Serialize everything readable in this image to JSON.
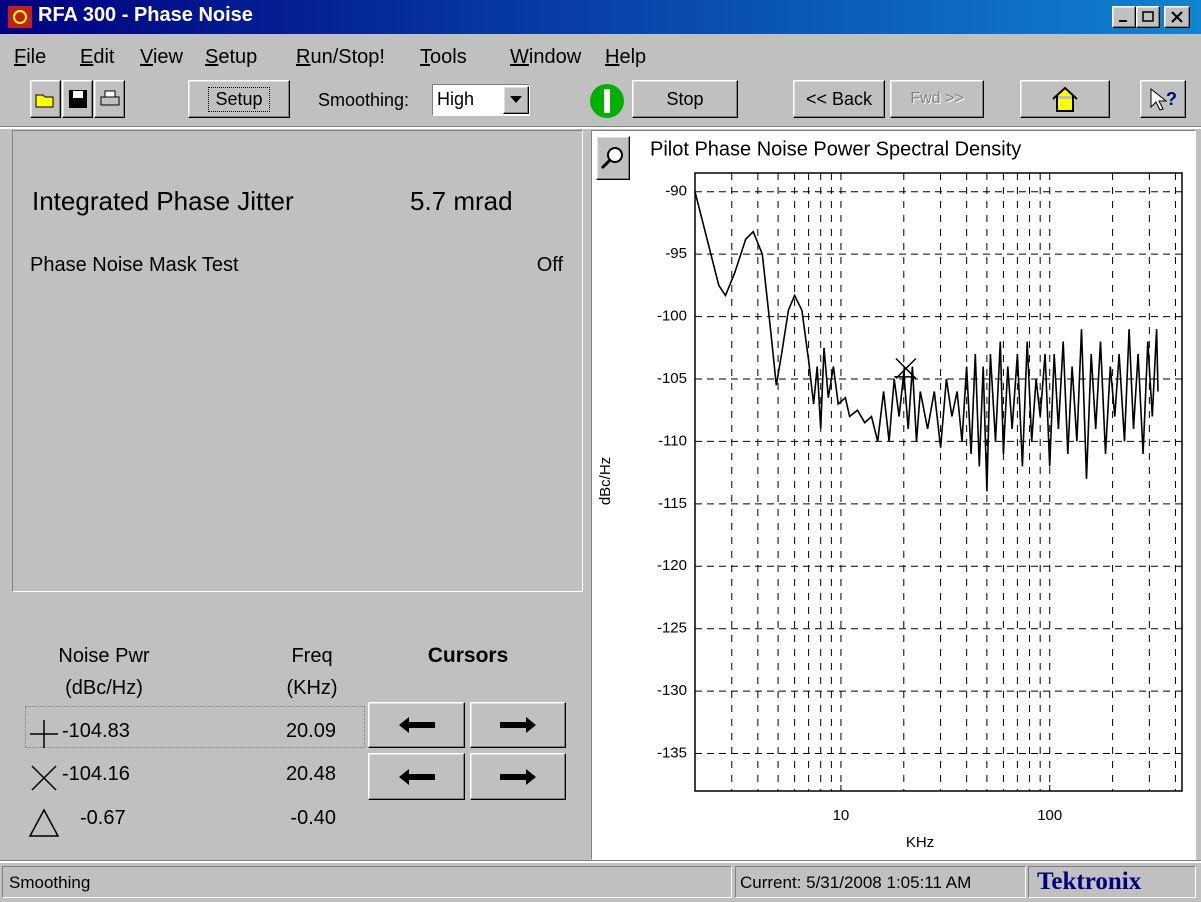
{
  "window": {
    "title": "RFA 300 - Phase Noise"
  },
  "menu": [
    "File",
    "Edit",
    "View",
    "Setup",
    "Run/Stop!",
    "Tools",
    "Window",
    "Help"
  ],
  "toolbar": {
    "setup": "Setup",
    "smoothing_label": "Smoothing:",
    "smoothing_value": "High",
    "stop": "Stop",
    "back": "<< Back",
    "fwd": "Fwd >>"
  },
  "results": {
    "jitter_label": "Integrated Phase Jitter",
    "jitter_value": "5.7 mrad",
    "mask_label": "Phase Noise Mask Test",
    "mask_value": "Off"
  },
  "cursor_table": {
    "power_header": [
      "Noise Pwr",
      "(dBc/Hz)"
    ],
    "freq_header": [
      "Freq",
      "(KHz)"
    ],
    "cursors_label": "Cursors",
    "rows": [
      {
        "power": "-104.83",
        "freq": "20.09"
      },
      {
        "power": "-104.16",
        "freq": "20.48"
      },
      {
        "power": "-0.67",
        "freq": "-0.40"
      }
    ]
  },
  "status": {
    "left": "Smoothing",
    "current": "Current: 5/31/2008 1:05:11 AM",
    "brand": "Tektronix"
  },
  "chart_data": {
    "type": "line",
    "title": "Pilot Phase Noise Power Spectral Density",
    "xlabel": "KHz",
    "ylabel": "dBc/Hz",
    "xscale": "log",
    "grid": true,
    "color": "#000000",
    "xlim": [
      2,
      430
    ],
    "ylim": [
      -88.5,
      -138
    ],
    "xticks": [
      10,
      100
    ],
    "xminor": [
      2,
      3,
      4,
      5,
      6,
      7,
      8,
      9,
      10,
      20,
      30,
      40,
      50,
      60,
      70,
      80,
      90,
      100,
      200,
      300,
      400
    ],
    "yticks": [
      -90,
      -95,
      -100,
      -105,
      -110,
      -115,
      -120,
      -125,
      -130,
      -135
    ],
    "x": [
      2,
      2.3,
      2.6,
      2.8,
      3.1,
      3.5,
      3.8,
      4.2,
      4.6,
      4.9,
      5.2,
      5.6,
      6,
      6.5,
      7,
      7.4,
      7.7,
      8,
      8.3,
      8.7,
      9.2,
      9.7,
      10.5,
      11,
      12,
      13,
      14,
      15,
      16,
      17,
      18,
      19,
      20,
      21,
      22,
      23,
      24,
      26,
      28,
      30,
      32,
      34,
      36,
      38,
      40,
      42,
      44,
      46,
      48,
      50,
      52,
      55,
      58,
      60,
      63,
      66,
      70,
      74,
      78,
      82,
      86,
      90,
      95,
      100,
      105,
      110,
      116,
      122,
      128,
      135,
      142,
      150,
      158,
      166,
      175,
      185,
      195,
      205,
      215,
      228,
      240,
      252,
      265,
      280,
      295,
      310,
      325,
      330
    ],
    "values": [
      -90,
      -94,
      -97.5,
      -98.3,
      -96.5,
      -93.8,
      -93.2,
      -95,
      -101,
      -105.5,
      -103,
      -99.5,
      -98.3,
      -99.5,
      -103.5,
      -107,
      -104,
      -109,
      -102.5,
      -106.5,
      -104,
      -107,
      -106.5,
      -108,
      -107.5,
      -108.5,
      -108,
      -110,
      -106,
      -110,
      -105,
      -108,
      -104.5,
      -109,
      -104,
      -110,
      -106,
      -109,
      -106,
      -110.5,
      -105,
      -108,
      -106,
      -110,
      -104,
      -111,
      -103,
      -112,
      -104,
      -114,
      -103,
      -110,
      -102,
      -111,
      -104,
      -109,
      -103,
      -112,
      -102,
      -110,
      -105,
      -108,
      -103,
      -112,
      -103,
      -109,
      -102,
      -111,
      -104,
      -110,
      -101,
      -113,
      -103,
      -109,
      -102,
      -111,
      -104,
      -108,
      -103,
      -110,
      -101,
      -109,
      -103,
      -111,
      -102,
      -108,
      -101,
      -106
    ],
    "cursors": [
      {
        "x": 20.09,
        "y": -104.83
      },
      {
        "x": 20.48,
        "y": -104.16
      }
    ]
  }
}
